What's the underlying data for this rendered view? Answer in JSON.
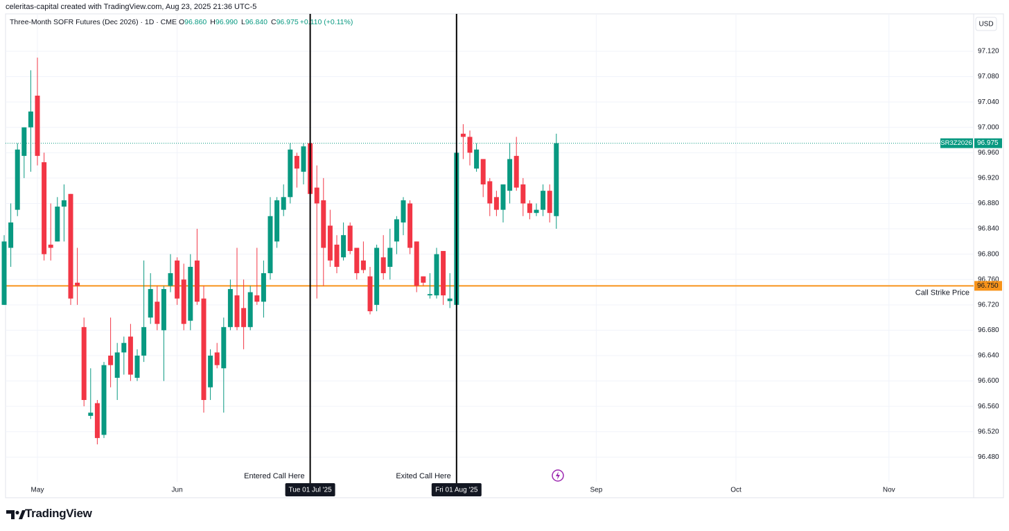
{
  "watermark": "celeritas-capital created with TradingView.com, Aug 23, 2025 21:36 UTC-5",
  "branding": "TradingView",
  "chart_data": {
    "type": "candlestick",
    "title": "Three-Month SOFR Futures (Dec 2026) · 1D · CME",
    "legend": [
      {
        "key": "O",
        "value": "96.860"
      },
      {
        "key": "H",
        "value": "96.990"
      },
      {
        "key": "L",
        "value": "96.840"
      },
      {
        "key": "C",
        "value": "96.975"
      }
    ],
    "change": "+0.110 (+0.11%)",
    "currency": "USD",
    "up_color": "#089981",
    "down_color": "#f23645",
    "open": [
      96.72,
      96.81,
      96.87,
      96.955,
      97.0,
      97.05,
      96.945,
      96.815,
      96.82,
      96.875,
      96.895,
      96.755,
      96.685,
      96.545,
      96.565,
      96.515,
      96.64,
      96.605,
      96.645,
      96.67,
      96.605,
      96.64,
      96.7,
      96.725,
      96.68,
      96.75,
      96.79,
      96.76,
      96.695,
      96.79,
      96.73,
      96.59,
      96.645,
      96.62,
      96.685,
      96.735,
      96.715,
      96.685,
      96.735,
      96.725,
      96.77,
      96.82,
      96.87,
      96.89,
      96.955,
      96.93,
      96.975,
      96.905,
      96.885,
      96.845,
      96.815,
      96.795,
      96.845,
      96.81,
      96.79,
      96.765,
      96.72,
      96.795,
      96.78,
      96.82,
      96.85,
      96.88,
      96.82,
      96.765,
      96.735,
      96.735,
      96.805,
      96.726,
      96.72,
      96.99,
      96.985,
      96.935,
      96.95,
      96.915,
      96.89,
      96.87,
      96.9,
      96.955,
      96.91,
      96.88,
      96.865,
      96.87,
      96.9,
      96.86
    ],
    "high": [
      96.83,
      96.88,
      96.975,
      97.0,
      97.09,
      97.11,
      96.96,
      96.88,
      96.89,
      96.91,
      96.895,
      96.81,
      96.7,
      96.62,
      96.57,
      96.63,
      96.7,
      96.66,
      96.67,
      96.69,
      96.65,
      96.79,
      96.77,
      96.75,
      96.75,
      96.8,
      96.795,
      96.785,
      96.8,
      96.84,
      96.75,
      96.65,
      96.66,
      96.7,
      96.76,
      96.81,
      96.76,
      96.75,
      96.81,
      96.79,
      96.89,
      96.89,
      96.91,
      96.975,
      96.96,
      96.975,
      97.0,
      96.94,
      96.92,
      96.87,
      96.83,
      96.85,
      96.85,
      96.81,
      96.82,
      96.78,
      96.815,
      96.83,
      96.84,
      96.86,
      96.89,
      96.885,
      96.82,
      96.765,
      96.77,
      96.81,
      96.805,
      96.77,
      96.97,
      97.005,
      96.995,
      96.975,
      96.95,
      96.92,
      96.9,
      96.91,
      96.975,
      96.985,
      96.92,
      96.885,
      96.88,
      96.91,
      96.91,
      96.99
    ],
    "low": [
      96.72,
      96.78,
      96.86,
      96.92,
      96.93,
      96.94,
      96.79,
      96.79,
      96.82,
      96.82,
      96.72,
      96.72,
      96.56,
      96.54,
      96.5,
      96.51,
      96.59,
      96.57,
      96.61,
      96.6,
      96.6,
      96.63,
      96.69,
      96.68,
      96.6,
      96.74,
      96.72,
      96.68,
      96.68,
      96.72,
      96.55,
      96.57,
      96.62,
      96.55,
      96.68,
      96.68,
      96.65,
      96.68,
      96.72,
      96.7,
      96.76,
      96.81,
      96.86,
      96.88,
      96.905,
      96.91,
      96.87,
      96.73,
      96.75,
      96.78,
      96.77,
      96.79,
      96.8,
      96.76,
      96.77,
      96.705,
      96.71,
      96.76,
      96.76,
      96.8,
      96.83,
      96.8,
      96.74,
      96.75,
      96.73,
      96.73,
      96.72,
      96.715,
      96.715,
      96.95,
      96.94,
      96.93,
      96.89,
      96.86,
      96.86,
      96.85,
      96.88,
      96.9,
      96.86,
      96.855,
      96.86,
      96.86,
      96.85,
      96.84
    ],
    "close": [
      96.82,
      96.85,
      96.965,
      97.0,
      97.025,
      96.955,
      96.8,
      96.81,
      96.875,
      96.885,
      96.73,
      96.75,
      96.57,
      96.55,
      96.51,
      96.625,
      96.625,
      96.645,
      96.66,
      96.61,
      96.64,
      96.685,
      96.745,
      96.69,
      96.745,
      96.77,
      96.73,
      96.69,
      96.78,
      96.725,
      96.57,
      96.64,
      96.625,
      96.685,
      96.745,
      96.685,
      96.685,
      96.74,
      96.725,
      96.77,
      96.86,
      96.885,
      96.89,
      96.965,
      96.935,
      96.97,
      96.895,
      96.88,
      96.81,
      96.79,
      96.78,
      96.83,
      96.805,
      96.77,
      96.775,
      96.71,
      96.81,
      96.77,
      96.81,
      96.855,
      96.885,
      96.81,
      96.75,
      96.755,
      96.737,
      96.8,
      96.735,
      96.73,
      96.96,
      96.985,
      96.96,
      96.965,
      96.91,
      96.88,
      96.87,
      96.91,
      96.95,
      96.905,
      96.88,
      96.865,
      96.87,
      96.9,
      96.865,
      96.975
    ],
    "ylim": [
      96.441,
      97.179
    ],
    "yticks": [
      {
        "value": 96.48,
        "label": "96.480"
      },
      {
        "value": 96.52,
        "label": "96.520"
      },
      {
        "value": 96.56,
        "label": "96.560"
      },
      {
        "value": 96.6,
        "label": "96.600"
      },
      {
        "value": 96.64,
        "label": "96.640"
      },
      {
        "value": 96.68,
        "label": "96.680"
      },
      {
        "value": 96.72,
        "label": "96.720"
      },
      {
        "value": 96.76,
        "label": "96.760"
      },
      {
        "value": 96.8,
        "label": "96.800"
      },
      {
        "value": 96.84,
        "label": "96.840"
      },
      {
        "value": 96.88,
        "label": "96.880"
      },
      {
        "value": 96.92,
        "label": "96.920"
      },
      {
        "value": 96.96,
        "label": "96.960"
      },
      {
        "value": 97.0,
        "label": "97.000"
      },
      {
        "value": 97.04,
        "label": "97.040"
      },
      {
        "value": 97.08,
        "label": "97.080"
      },
      {
        "value": 97.12,
        "label": "97.120"
      }
    ],
    "xticks": [
      {
        "value": 5,
        "label": "May"
      },
      {
        "value": 26,
        "label": "Jun"
      },
      {
        "value": 46,
        "label": "Tue 01 Jul '25",
        "highlight": true
      },
      {
        "value": 68,
        "label": "Fri 01 Aug '25",
        "highlight": true
      },
      {
        "value": 89,
        "label": "Sep"
      },
      {
        "value": 110,
        "label": "Oct"
      },
      {
        "value": 133,
        "label": "Nov"
      }
    ],
    "grid": true,
    "last_price": {
      "symbol": "SR3Z2026",
      "value": 96.975,
      "label": "96.975",
      "color": "#089981"
    },
    "horizontal_lines": [
      {
        "value": 96.75,
        "label": "96.750",
        "text": "Call Strike Price",
        "color": "#f7931a"
      }
    ],
    "vertical_lines": [
      {
        "x": 46,
        "text": "Entered Call Here"
      },
      {
        "x": 68,
        "text": "Exited Call Here"
      }
    ]
  }
}
